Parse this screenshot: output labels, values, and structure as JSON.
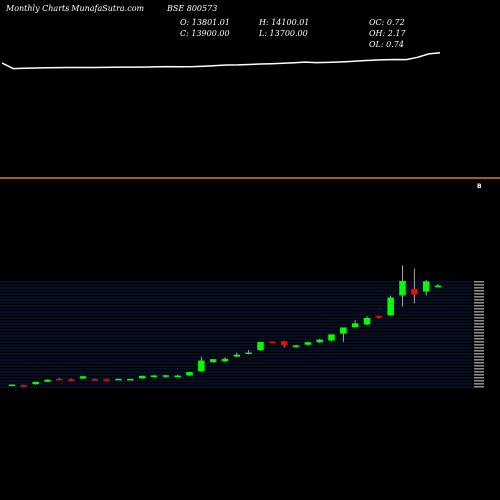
{
  "header": {
    "period": "Monthly Charts",
    "site": "- MunafaSutra.com",
    "symbol": "BSE 800573"
  },
  "ohlc_summary": {
    "open": "O: 13801.01",
    "close": "C: 13900.00",
    "high": "H: 14100.01",
    "low": "L: 13700.00",
    "oc": "OC: 0.72",
    "oh": "OH: 2.17",
    "ol": "OL: 0.74"
  },
  "indicator_label": "B",
  "colors": {
    "background": "#000000",
    "line": "#ffffff",
    "divider": "#e07b1a",
    "up": "#00ff00",
    "down": "#ff0000",
    "grid": "#1a3a8c"
  },
  "chart_data": [
    {
      "type": "line",
      "title": "",
      "xlabel": "",
      "ylabel": "",
      "x": [
        0,
        1,
        2,
        3,
        4,
        5,
        6,
        7,
        8,
        9,
        10,
        11,
        12,
        13,
        14,
        15,
        16,
        17,
        18,
        19,
        20,
        21,
        22,
        23,
        24,
        25,
        26,
        27,
        28,
        29,
        30,
        31,
        32,
        33,
        34,
        35,
        36,
        37,
        38,
        39
      ],
      "values": [
        150,
        142,
        142.4,
        142.8,
        143.1,
        143.4,
        143.5,
        143.6,
        143.6,
        143.7,
        143.9,
        144.1,
        144.2,
        144.3,
        144.5,
        144.8,
        144.7,
        144.9,
        145.4,
        146.3,
        147.1,
        147.3,
        147.9,
        148.6,
        149,
        149.6,
        150.5,
        151.3,
        150.6,
        150.9,
        151.4,
        152.1,
        153.2,
        153.9,
        154.7,
        155,
        154.8,
        158.1,
        163,
        164.5
      ],
      "ylim": [
        0,
        200
      ]
    },
    {
      "type": "candlestick",
      "title": "",
      "grid": true,
      "ylim": [
        0,
        14400
      ],
      "candles": [
        {
          "o": 280,
          "h": 350,
          "l": 210,
          "c": 330
        },
        {
          "o": 260,
          "h": 300,
          "l": 180,
          "c": 220
        },
        {
          "o": 390,
          "h": 720,
          "l": 300,
          "c": 700
        },
        {
          "o": 720,
          "h": 1050,
          "l": 690,
          "c": 1010
        },
        {
          "o": 1120,
          "h": 1220,
          "l": 980,
          "c": 1060
        },
        {
          "o": 1060,
          "h": 1150,
          "l": 960,
          "c": 1050
        },
        {
          "o": 1160,
          "h": 1520,
          "l": 1090,
          "c": 1470
        },
        {
          "o": 1090,
          "h": 1160,
          "l": 1000,
          "c": 1060
        },
        {
          "o": 1060,
          "h": 1130,
          "l": 960,
          "c": 1020
        },
        {
          "o": 1000,
          "h": 1150,
          "l": 960,
          "c": 1120
        },
        {
          "o": 1030,
          "h": 1140,
          "l": 1000,
          "c": 1110
        },
        {
          "o": 1170,
          "h": 1580,
          "l": 1130,
          "c": 1510
        },
        {
          "o": 1400,
          "h": 1680,
          "l": 1340,
          "c": 1570
        },
        {
          "o": 1400,
          "h": 1680,
          "l": 1300,
          "c": 1600
        },
        {
          "o": 1530,
          "h": 1700,
          "l": 1360,
          "c": 1560
        },
        {
          "o": 1580,
          "h": 2050,
          "l": 1500,
          "c": 2050
        },
        {
          "o": 2180,
          "h": 4160,
          "l": 2080,
          "c": 3620
        },
        {
          "o": 3410,
          "h": 3820,
          "l": 3310,
          "c": 3820
        },
        {
          "o": 3530,
          "h": 4060,
          "l": 3400,
          "c": 3870
        },
        {
          "o": 4180,
          "h": 4730,
          "l": 4100,
          "c": 4430
        },
        {
          "o": 4580,
          "h": 5070,
          "l": 4470,
          "c": 4730
        },
        {
          "o": 5060,
          "h": 6170,
          "l": 4960,
          "c": 6170
        },
        {
          "o": 6240,
          "h": 6270,
          "l": 6050,
          "c": 6070
        },
        {
          "o": 6280,
          "h": 6370,
          "l": 5440,
          "c": 5750
        },
        {
          "o": 5670,
          "h": 5780,
          "l": 5390,
          "c": 5710
        },
        {
          "o": 5810,
          "h": 6240,
          "l": 5670,
          "c": 6140
        },
        {
          "o": 6130,
          "h": 6580,
          "l": 6050,
          "c": 6490
        },
        {
          "o": 6380,
          "h": 7220,
          "l": 6280,
          "c": 7220
        },
        {
          "o": 7310,
          "h": 8160,
          "l": 6190,
          "c": 8160
        },
        {
          "o": 8220,
          "h": 9170,
          "l": 8130,
          "c": 8740
        },
        {
          "o": 8570,
          "h": 9710,
          "l": 8440,
          "c": 9470
        },
        {
          "o": 9730,
          "h": 9780,
          "l": 9400,
          "c": 9620
        },
        {
          "o": 9840,
          "h": 12540,
          "l": 9740,
          "c": 12260
        },
        {
          "o": 12560,
          "h": 16700,
          "l": 11000,
          "c": 14560
        },
        {
          "o": 13450,
          "h": 16250,
          "l": 11460,
          "c": 12680
        },
        {
          "o": 13080,
          "h": 14680,
          "l": 12570,
          "c": 14500
        },
        {
          "o": 13801.01,
          "h": 14100.01,
          "l": 13700,
          "c": 13900
        }
      ]
    }
  ]
}
